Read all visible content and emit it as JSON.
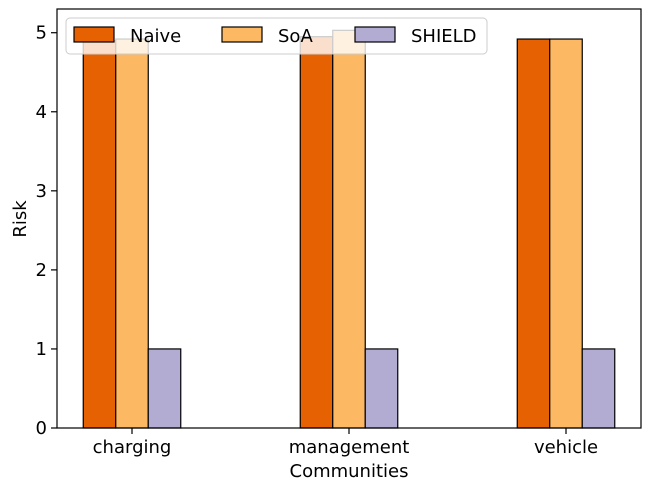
{
  "chart_data": {
    "type": "bar",
    "title": "",
    "xlabel": "Communities",
    "ylabel": "Risk",
    "categories": [
      "charging",
      "management",
      "vehicle"
    ],
    "series": [
      {
        "name": "Naive",
        "values": [
          4.9,
          4.95,
          4.92
        ],
        "color": "#e66101"
      },
      {
        "name": "SoA",
        "values": [
          4.92,
          5.03,
          4.92
        ],
        "color": "#fdb863"
      },
      {
        "name": "SHIELD",
        "values": [
          1.0,
          1.0,
          1.0
        ],
        "color": "#b2abd2"
      }
    ],
    "ylim": [
      0,
      5.3
    ],
    "yticks": [
      0,
      1,
      2,
      3,
      4,
      5
    ],
    "grid": false,
    "legend_position": "top",
    "bar_edge_color": "#000000"
  }
}
